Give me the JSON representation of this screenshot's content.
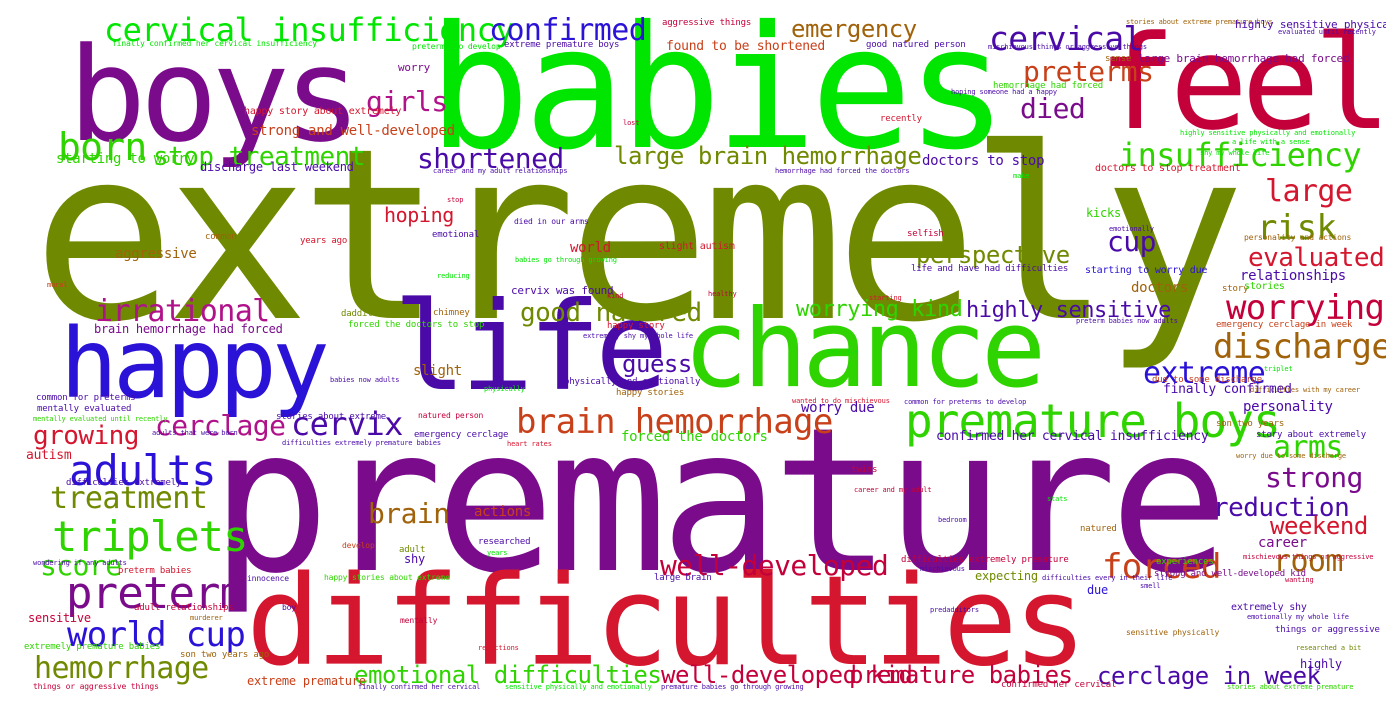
{
  "palette": {
    "purple": "#7a0c8c",
    "olive": "#6f8a00",
    "green": "#2fd400",
    "lime": "#00e600",
    "blue": "#2a12d6",
    "indigo": "#4a0aa8",
    "red": "#d4162e",
    "crimson": "#c4003a",
    "brown": "#a0620a",
    "rust": "#c8401a",
    "background": "#ffffff"
  },
  "words": {
    "extremely": "extremely",
    "premature": "premature",
    "babies": "babies",
    "difficulties": "difficulties",
    "life": "life",
    "boys": "boys",
    "feel": "feel",
    "happy": "happy",
    "chance": "chance",
    "premature_boys": "premature boys",
    "cervical_insufficiency": "cervical insufficiency",
    "confirmed": "confirmed",
    "emergency": "emergency",
    "cervical": "cervical",
    "preterms": "preterms",
    "born": "born",
    "girls": "girls",
    "stop_treatment": "stop treatment",
    "shortened": "shortened",
    "large_brain_hemorrhage": "large brain hemorrhage",
    "died": "died",
    "insufficiency": "insufficiency",
    "large": "large",
    "risk": "risk",
    "cup": "cup",
    "hoping": "hoping",
    "perspective": "perspective",
    "evaluated": "evaluated",
    "irrational": "irrational",
    "good_natured": "good natured",
    "worrying_kind": "worrying kind",
    "highly_sensitive": "highly sensitive",
    "worrying": "worrying",
    "discharge": "discharge",
    "guess": "guess",
    "extreme": "extreme",
    "brain_hemorrhage": "brain hemorrhage",
    "cerclage": "cerclage",
    "cervix": "cervix",
    "growing": "growing",
    "adults": "adults",
    "arms": "arms",
    "treatment": "treatment",
    "strong": "strong",
    "brain": "brain",
    "reduction": "reduction",
    "weekend": "weekend",
    "triplets": "triplets",
    "score": "score",
    "well_developed": "well-developed",
    "forced": "forced",
    "room": "room",
    "preterm": "preterm",
    "world_cup": "world cup",
    "hemorrhage": "hemorrhage",
    "emotional_difficulties": "emotional difficulties",
    "well_developed_kid": "well-developed kid",
    "premature_babies": "premature babies",
    "cerclage_in_week": "cerclage in week",
    "aggressive_things": "aggressive things",
    "stories_about_extreme_premature_boys": "stories about extreme premature boys",
    "highly_sensitive_physically": "highly sensitive physically",
    "evaluated_until_recently": "evaluated until recently",
    "finally_confirmed_her_cervical_insufficiency": "finally confirmed her cervical insufficiency",
    "preterms_to_develop": "preterms to develop",
    "extreme_premature_boys": "extreme premature boys",
    "found_to_be_shortened": "found to be shortened",
    "good_natured_person": "good natured person",
    "mischievous_things_or_aggressive_things": "mischievous things or aggressive things",
    "sense": "sense",
    "large_brain_hemorrhage_had_forced": "large brain hemorrhage had forced",
    "worry": "worry",
    "hemorrhage_had_forced": "hemorrhage had forced",
    "hoping_someone_had_a_happy": "hoping someone had a happy",
    "lost": "lost",
    "happy_story_about_extremely": "happy story about extremely",
    "recently": "recently",
    "strong_and_well_developed": "strong and well-developed",
    "highly_sensitive_physically_and_emotionally": "highly sensitive physically and emotionally",
    "a_life_with_a_sense": "a life with a sense",
    "shy_my_whole_life": "shy my whole life",
    "starting_to_worry": "starting to worry",
    "discharge_last_weekend": "discharge last weekend",
    "career_and_my_adult_relationships": "career and my adult relationships",
    "hemorrhage_had_forced_the_doctors": "hemorrhage had forced the doctors",
    "make": "make",
    "doctors_to_stop_treatment": "doctors to stop treatment",
    "doctors_to_stop": "doctors to stop",
    "stop": "stop",
    "selfish": "selfish",
    "emotionally": "emotionally",
    "kicks": "kicks",
    "died_in_our_arms": "died in our arms",
    "emotional": "emotional",
    "common": "common",
    "aggressive": "aggressive",
    "years_ago": "years ago",
    "slight_autism": "slight autism",
    "babies_go_through_growing": "babies go through growing",
    "reducing": "reducing",
    "moral": "moral",
    "life_and_have_had_difficulties": "life and have had difficulties",
    "starting_to_worry_due": "starting to worry due",
    "personality_and_actions": "personality and actions",
    "relationships": "relationships",
    "world": "world",
    "cervix_was_found": "cervix was found",
    "kind": "kind",
    "healthy": "healthy",
    "starting": "starting",
    "doctors": "doctors",
    "story": "story",
    "stories": "stories",
    "dadditors": "dadditors",
    "chimney": "chimney",
    "forced_the_doctors_to_stop": "forced the doctors to stop",
    "brain_hemorrhage_had_forced": "brain hemorrhage had forced",
    "happy_story": "happy story",
    "extremely_shy_my_whole_life": "extremely shy my whole life",
    "preterm_babies_now_adults": "preterm babies now adults",
    "emergency_cerclage_in_week": "emergency cerclage in week",
    "calculus": "calculus",
    "babies_now_adults": "babies now adults",
    "physically_and_emotionally": "physically and emotionally",
    "physically": "physically",
    "slight": "slight",
    "happy_stories": "happy stories",
    "wanted_to_do_mischievous": "wanted to do mischievous",
    "common_for_preterms_to_develop": "common for preterms to develop",
    "due_to_some_discharge": "due to some discharge",
    "triplet": "triplet",
    "difficulties_with_my_career": "difficulties with my career",
    "finally_confirmed": "finally confirmed",
    "common_for_preterms": "common for preterms",
    "mentally_evaluated": "mentally evaluated",
    "mentally_evaluated_until_recently": "mentally evaluated until recently",
    "stories_about_extreme": "stories about extreme",
    "natured_person": "natured person",
    "worry_due": "worry due",
    "personality": "personality",
    "difficulties_extremely_premature_babies": "difficulties extremely premature babies",
    "adults_that_were_born": "adults that were born",
    "emergency_cerclage": "emergency cerclage",
    "heart_rates": "heart rates",
    "forced_the_doctors": "forced the doctors",
    "confirmed_her_cervical_insufficiency": "confirmed her cervical insufficiency",
    "son_two_years": "son two years",
    "story_about_extremely": "story about extremely",
    "autism": "autism",
    "worry_due_to_some_discharge": "worry due to some discharge",
    "twins": "twins",
    "difficulties_extremely": "difficulties extremely",
    "career_and_my_adult": "career and my adult",
    "stats": "stats",
    "actions": "actions",
    "natured": "natured",
    "career": "career",
    "bedroom": "bedroom",
    "mischievous_things_or_aggressive": "mischievous things or aggressive",
    "wondering_if_any_adults": "wondering if any adults",
    "develop": "develop",
    "researched": "researched",
    "years": "years",
    "difficulties_extremely_premature": "difficulties extremely premature",
    "experiences": "experiences",
    "preterm_babies": "preterm babies",
    "adult": "adult",
    "large_brain": "large brain",
    "strong_and_well_developed_kid": "strong and well-developed kid",
    "shy": "shy",
    "mischievous": "mischievous",
    "wanting": "wanting",
    "innocence": "innocence",
    "happy_stories_about_extreme": "happy stories about extreme",
    "expecting": "expecting",
    "difficulties_every_in_their_life": "difficulties every in their life",
    "smell": "smell",
    "due": "due",
    "predadditors": "predadditors",
    "extremely_shy": "extremely shy",
    "sensitive": "sensitive",
    "adult_relationships": "adult relationships",
    "boy": "boy",
    "emotionally_my_whole_life": "emotionally my whole life",
    "murderer": "murderer",
    "mentally": "mentally",
    "things_or_aggressive": "things or aggressive",
    "extremely_premature_babies": "extremely premature babies",
    "son_two_years_ago": "son two years ago",
    "sensitive_physically": "sensitive physically",
    "researched_a_bit": "researched a bit",
    "reductions": "reductions",
    "highly": "highly",
    "things_or_aggressive_things": "things or aggressive things",
    "extreme_premature": "extreme premature",
    "finally_confirmed_her_cervical": "finally confirmed her cervical",
    "sensitive_physically_and_emotionally": "sensitive physically and emotionally",
    "premature_babies_go_through_growing": "premature babies go through growing",
    "confirmed_her_cervical": "confirmed her cervical",
    "stories_about_extreme_premature": "stories about extreme premature"
  }
}
